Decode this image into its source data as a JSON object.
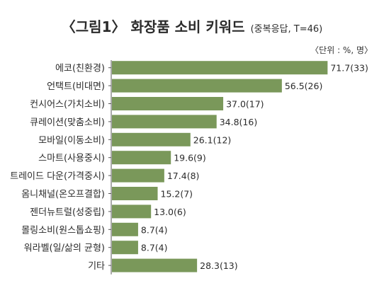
{
  "title": {
    "main": "〈그림1〉 화장품 소비 키워드",
    "sub": "(중복응답, T=46)"
  },
  "unit_note": "〈단위 : %, 명〉",
  "colors": {
    "bar": "#7a985a",
    "axis": "#555555",
    "text": "#2b2b2b"
  },
  "chart_data": {
    "type": "bar",
    "orientation": "horizontal",
    "title": "〈그림1〉 화장품 소비 키워드",
    "subtitle": "(중복응답, T=46)",
    "unit": "〈단위 : %, 명〉",
    "xlim": [
      0,
      80
    ],
    "grid": false,
    "categories": [
      "에코(친환경)",
      "언택트(비대면)",
      "컨시어스(가치소비)",
      "큐레이션(맞춤소비)",
      "모바일(이동소비)",
      "스마트(사용중시)",
      "트레이드 다운(가격중시)",
      "옴니채널(온오프결합)",
      "젠더뉴트럴(성중립)",
      "몰링소비(원스톱쇼핑)",
      "워라벨(일/삶의 균형)",
      "기타"
    ],
    "values": [
      71.7,
      56.5,
      37.0,
      34.8,
      26.1,
      19.6,
      17.4,
      15.2,
      13.0,
      8.7,
      8.7,
      28.3
    ],
    "counts": [
      33,
      26,
      17,
      16,
      12,
      9,
      8,
      7,
      6,
      4,
      4,
      13
    ],
    "data_labels": [
      "71.7(33)",
      "56.5(26)",
      "37.0(17)",
      "34.8(16)",
      "26.1(12)",
      "19.6(9)",
      "17.4(8)",
      "15.2(7)",
      "13.0(6)",
      "8.7(4)",
      "8.7(4)",
      "28.3(13)"
    ]
  }
}
